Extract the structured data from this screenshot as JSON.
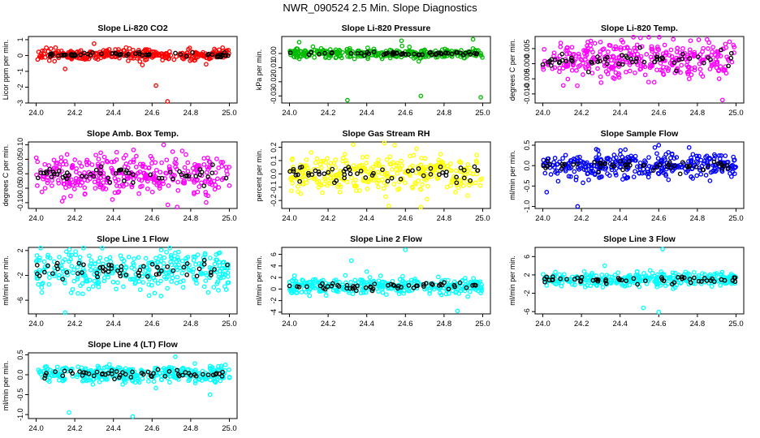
{
  "figure": {
    "title": "NWR_090524  2.5 Min. Slope Diagnostics",
    "colors": {
      "highlight": "#000000",
      "axis": "#000000"
    }
  },
  "chart_data": [
    {
      "type": "scatter",
      "title": "Slope Li-820 CO2",
      "xlabel": "",
      "ylabel": "Licor ppm per min.",
      "x_range": [
        24.0,
        25.0
      ],
      "ylim": [
        -3,
        1.2
      ],
      "xticks": [
        24.0,
        24.2,
        24.4,
        24.6,
        24.8,
        25.0
      ],
      "xtick_labels": [
        "24.0",
        "24.2",
        "24.4",
        "24.6",
        "24.8",
        "25.0"
      ],
      "yticks": [
        -3,
        -2,
        -1,
        0,
        1
      ],
      "ytick_labels": [
        "-3",
        "-2",
        "-1",
        "0",
        "1"
      ],
      "color": "#ff0000",
      "n_points": 320,
      "center": 0.05,
      "spread": 0.22,
      "outliers": [
        [
          24.68,
          -2.9
        ],
        [
          24.62,
          -1.9
        ],
        [
          24.15,
          -0.85
        ],
        [
          24.55,
          -0.6
        ],
        [
          24.88,
          -0.55
        ],
        [
          24.3,
          0.75
        ]
      ]
    },
    {
      "type": "scatter",
      "title": "Slope Li-820 Pressure",
      "xlabel": "",
      "ylabel": "kPa per min.",
      "x_range": [
        24.0,
        25.0
      ],
      "ylim": [
        -0.035,
        0.012
      ],
      "xticks": [
        24.0,
        24.2,
        24.4,
        24.6,
        24.8,
        25.0
      ],
      "xtick_labels": [
        "24.0",
        "24.2",
        "24.4",
        "24.6",
        "24.8",
        "25.0"
      ],
      "yticks": [
        -0.03,
        -0.02,
        -0.01,
        0.0
      ],
      "ytick_labels": [
        "-0.03",
        "-0.02",
        "-0.01",
        "0.00"
      ],
      "color": "#00bb00",
      "n_points": 320,
      "center": 0.0,
      "spread": 0.0022,
      "outliers": [
        [
          24.3,
          -0.033
        ],
        [
          24.99,
          -0.031
        ],
        [
          24.68,
          -0.03
        ],
        [
          24.05,
          0.008
        ],
        [
          24.95,
          0.01
        ],
        [
          24.58,
          0.009
        ]
      ]
    },
    {
      "type": "scatter",
      "title": "Slope Li-820 Temp.",
      "xlabel": "",
      "ylabel": "degrees C per min.",
      "x_range": [
        24.0,
        25.0
      ],
      "ylim": [
        -0.013,
        0.009
      ],
      "xticks": [
        24.0,
        24.2,
        24.4,
        24.6,
        24.8,
        25.0
      ],
      "xtick_labels": [
        "24.0",
        "24.2",
        "24.4",
        "24.6",
        "24.8",
        "25.0"
      ],
      "yticks": [
        -0.01,
        -0.005,
        0.0,
        0.005
      ],
      "ytick_labels": [
        "-0.010",
        "-0.005",
        "0.000",
        "0.005"
      ],
      "color": "#ff00ff",
      "n_points": 340,
      "center": 0.0012,
      "spread": 0.0045,
      "outliers": [
        [
          24.85,
          0.008
        ],
        [
          24.35,
          0.006
        ],
        [
          24.93,
          -0.012
        ]
      ]
    },
    {
      "type": "scatter",
      "title": "Slope Amb. Box Temp.",
      "xlabel": "",
      "ylabel": "degrees C per min.",
      "x_range": [
        24.0,
        25.0
      ],
      "ylim": [
        -0.12,
        0.11
      ],
      "xticks": [
        24.0,
        24.2,
        24.4,
        24.6,
        24.8,
        25.0
      ],
      "xtick_labels": [
        "24.0",
        "24.2",
        "24.4",
        "24.6",
        "24.8",
        "25.0"
      ],
      "yticks": [
        -0.1,
        -0.05,
        0.0,
        0.05,
        0.1
      ],
      "ytick_labels": [
        "-0.10",
        "-0.05",
        "0.00",
        "0.05",
        "0.10"
      ],
      "color": "#ff00ff",
      "n_points": 340,
      "center": 0.0,
      "spread": 0.045,
      "outliers": [
        [
          24.73,
          -0.115
        ],
        [
          24.66,
          0.1
        ]
      ]
    },
    {
      "type": "scatter",
      "title": "Slope Gas Stream RH",
      "xlabel": "",
      "ylabel": "percent per min.",
      "x_range": [
        24.0,
        25.0
      ],
      "ylim": [
        -0.26,
        0.24
      ],
      "xticks": [
        24.0,
        24.2,
        24.4,
        24.6,
        24.8,
        25.0
      ],
      "xtick_labels": [
        "24.0",
        "24.2",
        "24.4",
        "24.6",
        "24.8",
        "25.0"
      ],
      "yticks": [
        -0.2,
        -0.1,
        0.0,
        0.1,
        0.2
      ],
      "ytick_labels": [
        "-0.2",
        "-0.1",
        "0.0",
        "0.1",
        "0.2"
      ],
      "color": "#ffff00",
      "n_points": 330,
      "center": 0.0,
      "spread": 0.1,
      "outliers": [
        [
          24.68,
          -0.25
        ],
        [
          24.33,
          0.22
        ]
      ]
    },
    {
      "type": "scatter",
      "title": "Slope Sample Flow",
      "xlabel": "",
      "ylabel": "ml/min per min.",
      "x_range": [
        24.0,
        25.0
      ],
      "ylim": [
        -1.05,
        0.58
      ],
      "xticks": [
        24.0,
        24.2,
        24.4,
        24.6,
        24.8,
        25.0
      ],
      "xtick_labels": [
        "24.0",
        "24.2",
        "24.4",
        "24.6",
        "24.8",
        "25.0"
      ],
      "yticks": [
        -1.0,
        -0.5,
        0.0,
        0.5
      ],
      "ytick_labels": [
        "-1.0",
        "-0.5",
        "0.0",
        "0.5"
      ],
      "color": "#0000ff",
      "n_points": 340,
      "center": 0.0,
      "spread": 0.2,
      "outliers": [
        [
          24.18,
          -1.0
        ],
        [
          24.6,
          0.5
        ],
        [
          24.02,
          -0.65
        ]
      ]
    },
    {
      "type": "scatter",
      "title": "Slope Line 1 Flow",
      "xlabel": "",
      "ylabel": "ml/min per min.",
      "x_range": [
        24.0,
        25.0
      ],
      "ylim": [
        -8.2,
        2.5
      ],
      "xticks": [
        24.0,
        24.2,
        24.4,
        24.6,
        24.8,
        25.0
      ],
      "xtick_labels": [
        "24.0",
        "24.2",
        "24.4",
        "24.6",
        "24.8",
        "25.0"
      ],
      "yticks": [
        -6,
        -2,
        2
      ],
      "ytick_labels": [
        "-6",
        "-2",
        "2"
      ],
      "color": "#00ffff",
      "n_points": 340,
      "center": -1.3,
      "spread": 2.2,
      "outliers": [
        [
          24.15,
          -8.0
        ],
        [
          24.72,
          1.6
        ]
      ]
    },
    {
      "type": "scatter",
      "title": "Slope Line 2 Flow",
      "xlabel": "",
      "ylabel": "ml/min per min.",
      "x_range": [
        24.0,
        25.0
      ],
      "ylim": [
        -4.3,
        7.2
      ],
      "xticks": [
        24.0,
        24.2,
        24.4,
        24.6,
        24.8,
        25.0
      ],
      "xtick_labels": [
        "24.0",
        "24.2",
        "24.4",
        "24.6",
        "24.8",
        "25.0"
      ],
      "yticks": [
        -4,
        -2,
        0,
        2,
        4,
        6
      ],
      "ytick_labels": [
        "-4",
        "-2",
        "0",
        "2",
        "4",
        "6"
      ],
      "color": "#00ffff",
      "n_points": 330,
      "center": 0.5,
      "spread": 0.9,
      "outliers": [
        [
          24.6,
          6.8
        ],
        [
          24.32,
          4.9
        ],
        [
          24.87,
          -3.8
        ],
        [
          24.4,
          3.0
        ]
      ]
    },
    {
      "type": "scatter",
      "title": "Slope Line 3 Flow",
      "xlabel": "",
      "ylabel": "ml/min per min.",
      "x_range": [
        24.0,
        25.0
      ],
      "ylim": [
        -6.5,
        8.0
      ],
      "xticks": [
        24.0,
        24.2,
        24.4,
        24.6,
        24.8,
        25.0
      ],
      "xtick_labels": [
        "24.0",
        "24.2",
        "24.4",
        "24.6",
        "24.8",
        "25.0"
      ],
      "yticks": [
        -6,
        -2,
        2,
        6
      ],
      "ytick_labels": [
        "-6",
        "-2",
        "2",
        "6"
      ],
      "color": "#00ffff",
      "n_points": 330,
      "center": 1.0,
      "spread": 1.0,
      "outliers": [
        [
          24.62,
          7.6
        ],
        [
          24.6,
          -6.1
        ],
        [
          24.52,
          -5.2
        ],
        [
          24.32,
          4.0
        ]
      ]
    },
    {
      "type": "scatter",
      "title": "Slope Line 4 (LT) Flow",
      "xlabel": "",
      "ylabel": "ml/min per min.",
      "x_range": [
        24.0,
        25.0
      ],
      "ylim": [
        -1.1,
        0.55
      ],
      "xticks": [
        24.0,
        24.2,
        24.4,
        24.6,
        24.8,
        25.0
      ],
      "xtick_labels": [
        "24.0",
        "24.2",
        "24.4",
        "24.6",
        "24.8",
        "25.0"
      ],
      "yticks": [
        -1.0,
        -0.5,
        0.0,
        0.5
      ],
      "ytick_labels": [
        "-1.0",
        "-0.5",
        "0.0",
        "0.5"
      ],
      "color": "#00ffff",
      "n_points": 330,
      "center": 0.02,
      "spread": 0.14,
      "outliers": [
        [
          24.5,
          -1.05
        ],
        [
          24.17,
          -0.95
        ],
        [
          24.72,
          0.45
        ],
        [
          24.9,
          -0.5
        ]
      ]
    }
  ]
}
